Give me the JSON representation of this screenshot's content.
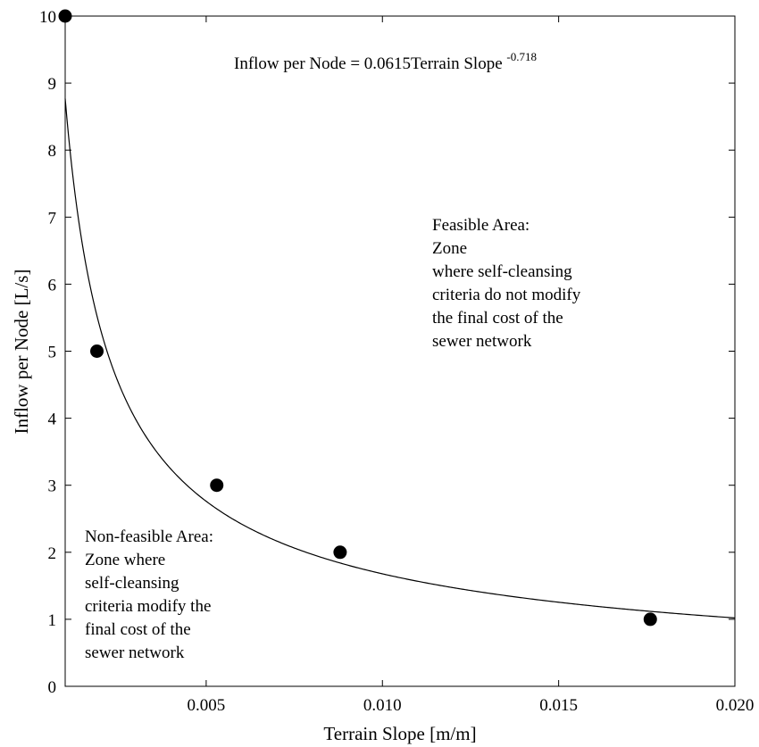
{
  "chart_data": {
    "type": "scatter",
    "xlabel": "Terrain Slope [m/m]",
    "ylabel": "Inflow per Node [L/s]",
    "xlim": [
      0.001,
      0.02
    ],
    "ylim": [
      0,
      10
    ],
    "x_ticks": [
      0.005,
      0.01,
      0.015,
      0.02
    ],
    "x_tick_labels": [
      "0.005",
      "0.010",
      "0.015",
      "0.020"
    ],
    "y_ticks": [
      0,
      1,
      2,
      3,
      4,
      5,
      6,
      7,
      8,
      9,
      10
    ],
    "y_tick_labels": [
      "0",
      "1",
      "2",
      "3",
      "4",
      "5",
      "6",
      "7",
      "8",
      "9",
      "10"
    ],
    "grid": false,
    "points": [
      {
        "x": 0.001,
        "y": 10
      },
      {
        "x": 0.0019,
        "y": 5
      },
      {
        "x": 0.0053,
        "y": 3
      },
      {
        "x": 0.0088,
        "y": 2
      },
      {
        "x": 0.0176,
        "y": 1
      }
    ],
    "fit_curve": {
      "model": "power",
      "coefficient": 0.0615,
      "exponent": -0.718,
      "label_main": "Inflow per Node = 0.0615Terrain Slope",
      "label_exponent": "-0.718"
    },
    "annotations": {
      "feasible": [
        "Feasible Area:",
        "Zone",
        "where self-cleansing",
        "criteria do not modify",
        "the final cost of the",
        "sewer network"
      ],
      "non_feasible": [
        "Non-feasible Area:",
        "Zone where",
        "self-cleansing",
        "criteria modify the",
        "final cost of the",
        "sewer network"
      ]
    }
  }
}
